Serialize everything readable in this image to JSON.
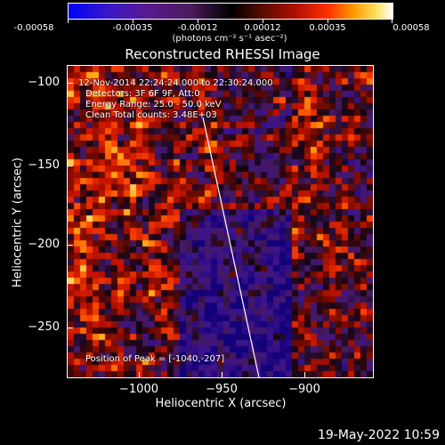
{
  "colorbar": {
    "tick_labels": [
      "-0.00058",
      "-0.00035",
      "-0.00012",
      "0.00012",
      "0.00035",
      "0.00058"
    ],
    "units": "(photons cm⁻² s⁻¹ asec⁻²)"
  },
  "image": {
    "title": "Reconstructed RHESSI Image",
    "info_lines": [
      "12-Nov-2014 22:24:24.000 to 22:30:24.000",
      "Detectors: 3F 6F 9F, Att:0",
      "Energy Range: 25.0 - 50.0 keV",
      "Clean    Total counts: 3.48E+03"
    ],
    "peak_text": "Position of Peak = [-1040,-207]",
    "x_axis": {
      "label": "Heliocentric X (arcsec)",
      "ticks": [
        "−1000",
        "−950",
        "−900"
      ],
      "range": [
        -1047,
        -905
      ]
    },
    "y_axis": {
      "label": "Heliocentric Y (arcsec)",
      "ticks": [
        "−100",
        "−150",
        "−200",
        "−250"
      ],
      "range": [
        -283,
        -87
      ]
    }
  },
  "timestamp": "19-May-2022 10:59"
}
